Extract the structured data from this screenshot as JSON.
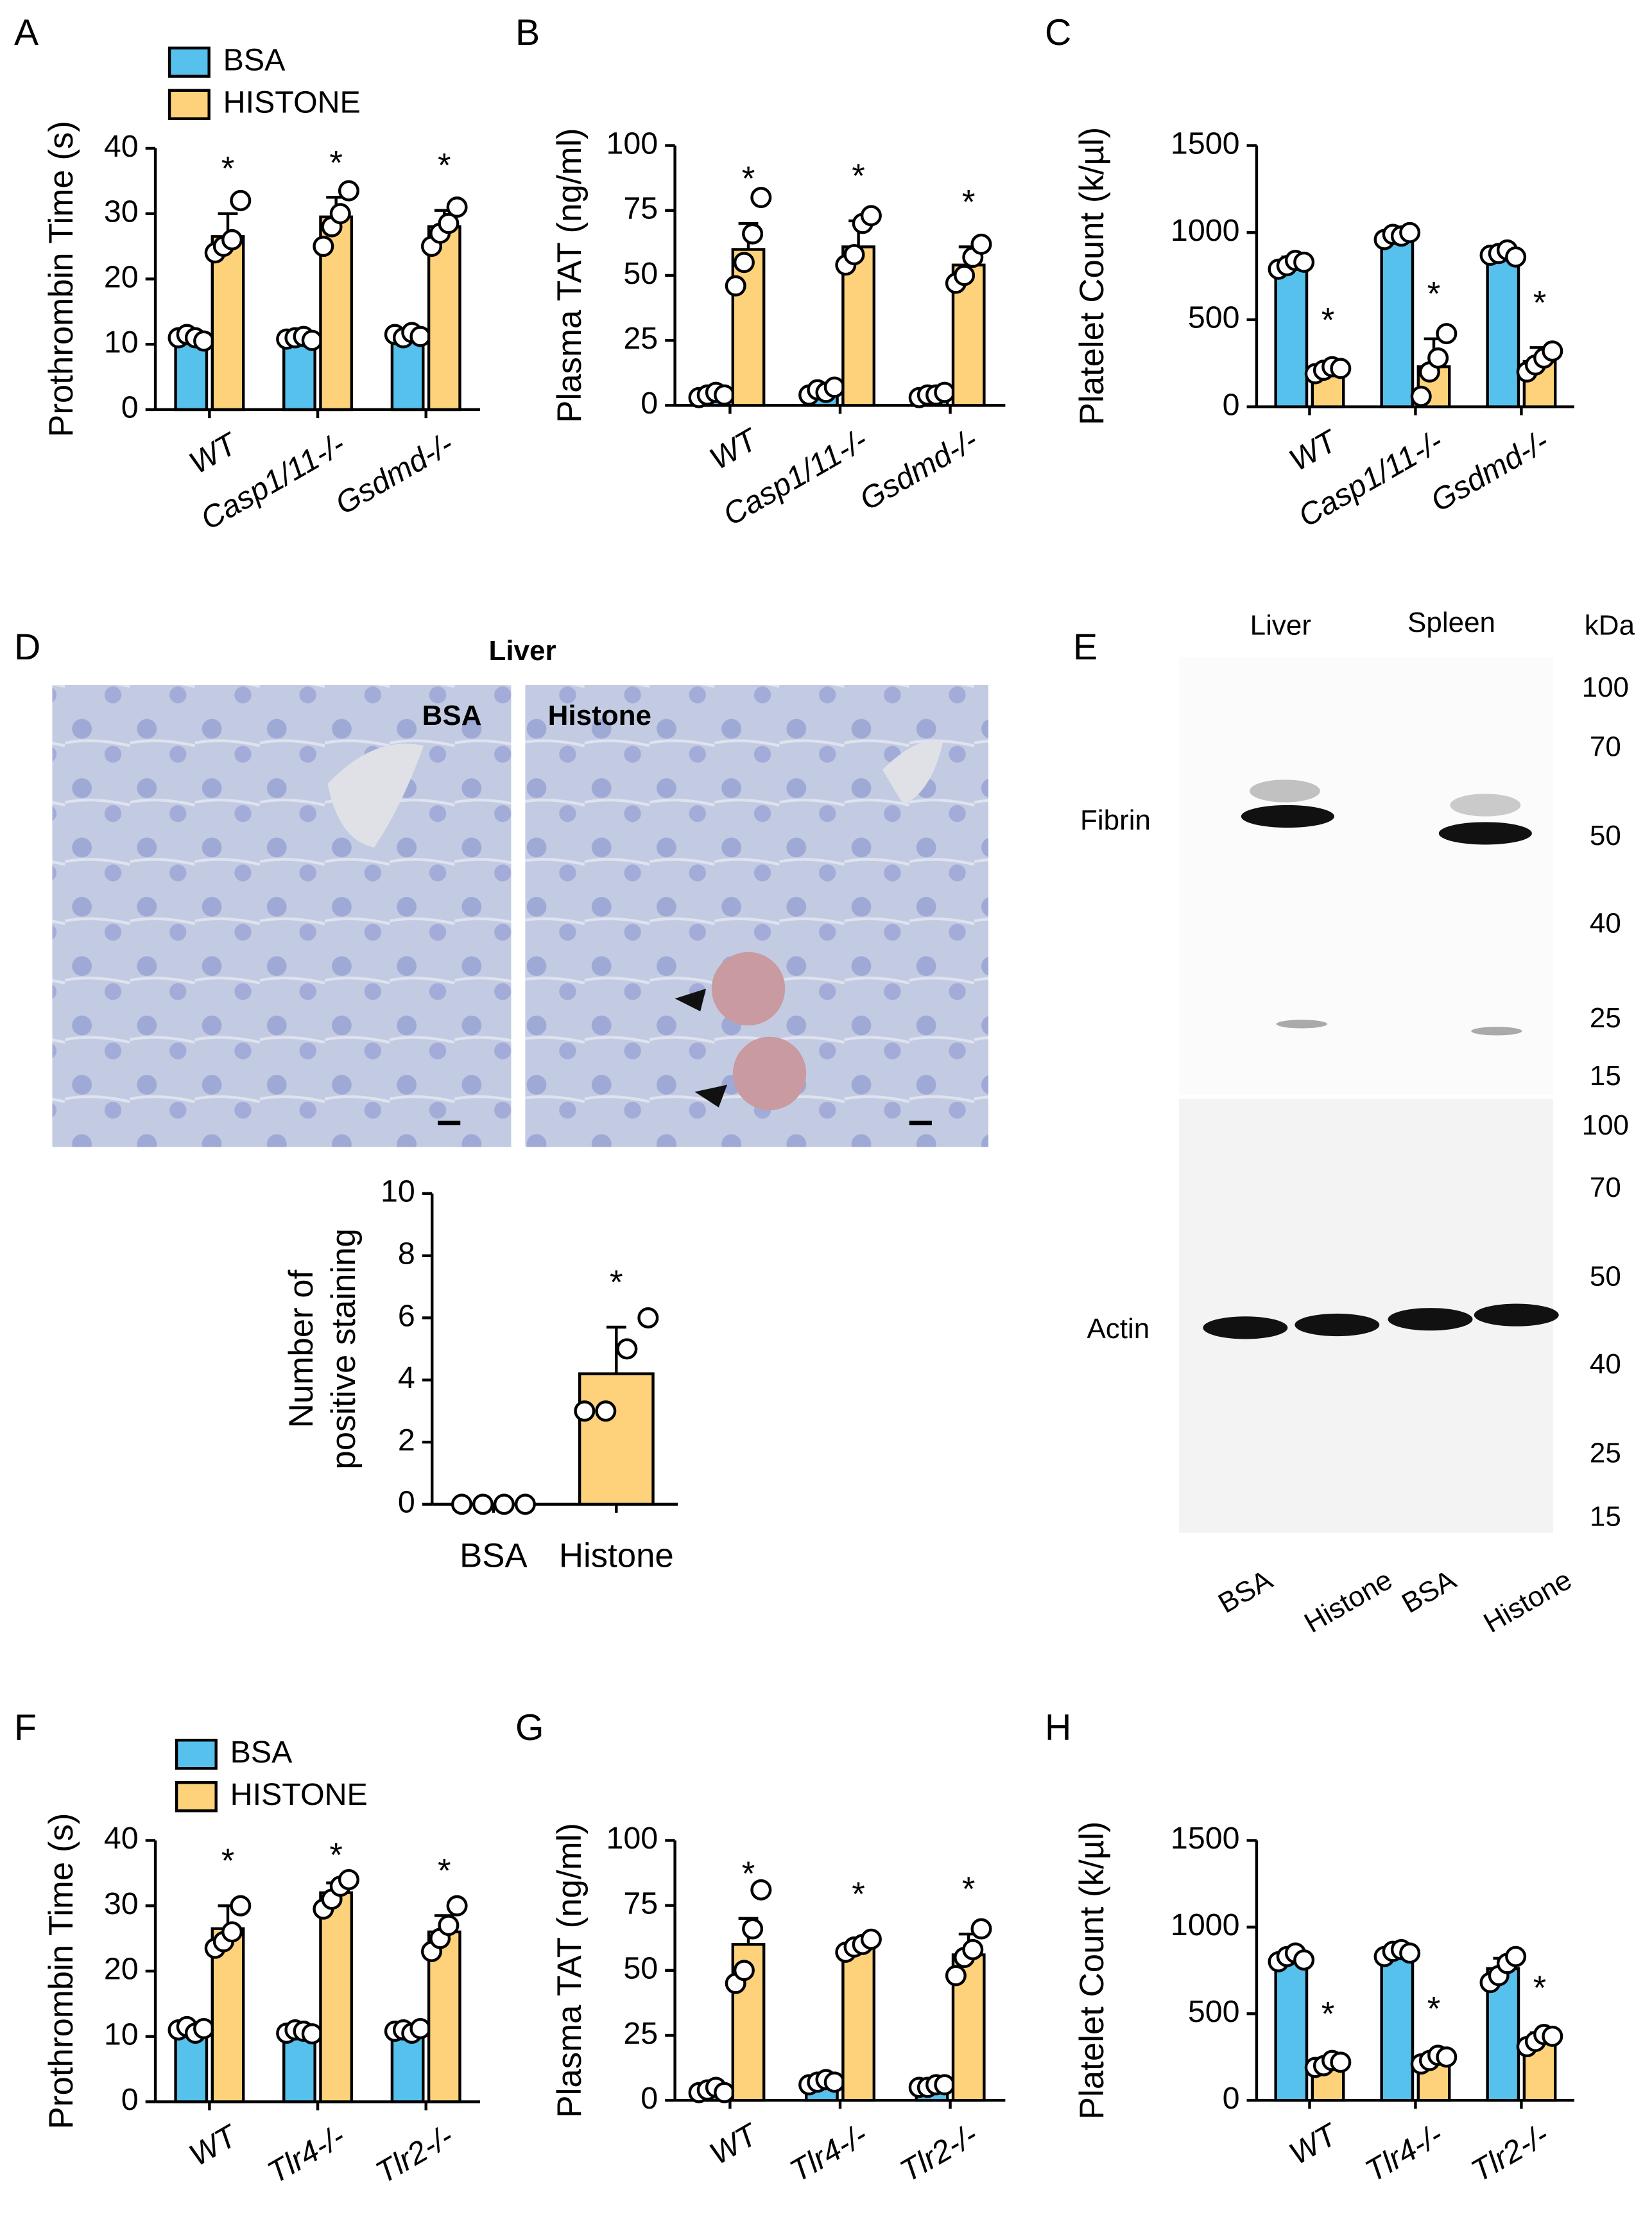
{
  "chart_data": [
    {
      "type": "bar",
      "label": "A",
      "ylabel": "Prothrombin Time (s)",
      "categories": [
        "WT",
        "Casp1/11-/-",
        "Gsdmd-/-"
      ],
      "series": [
        {
          "name": "BSA",
          "color": "#56c1ec",
          "values": [
            11,
            10.8,
            11.3
          ],
          "errors": [
            0.5,
            0.3,
            0.4
          ],
          "points": [
            [
              11,
              11.5,
              11,
              10.5
            ],
            [
              10.8,
              11,
              11.2,
              10.6
            ],
            [
              11.5,
              11,
              11.8,
              11.2
            ]
          ]
        },
        {
          "name": "HISTONE",
          "color": "#fdd27b",
          "values": [
            26.5,
            29.5,
            28
          ],
          "errors": [
            3.5,
            3,
            2.5
          ],
          "points": [
            [
              24,
              25,
              26,
              32
            ],
            [
              25,
              28,
              30,
              33.5
            ],
            [
              25,
              27,
              28.5,
              31
            ]
          ]
        }
      ],
      "ylim": [
        0,
        40
      ],
      "yticks": [
        0,
        10,
        20,
        30,
        40
      ],
      "annotations": [
        "*",
        "*",
        "*"
      ]
    },
    {
      "type": "bar",
      "label": "B",
      "ylabel": "Plasma TAT (ng/ml)",
      "categories": [
        "WT",
        "Casp1/11-/-",
        "Gsdmd-/-"
      ],
      "series": [
        {
          "color": "#56c1ec",
          "values": [
            4,
            5.5,
            4
          ],
          "errors": [
            1,
            1.5,
            1
          ],
          "points": [
            [
              3,
              4,
              5,
              4
            ],
            [
              4,
              6,
              5,
              7
            ],
            [
              3,
              4,
              4,
              5
            ]
          ]
        },
        {
          "color": "#fdd27b",
          "values": [
            60,
            61,
            54
          ],
          "errors": [
            10,
            10,
            7
          ],
          "points": [
            [
              46,
              55,
              66,
              80
            ],
            [
              54,
              58,
              70,
              73
            ],
            [
              47,
              50,
              57,
              62
            ]
          ]
        }
      ],
      "ylim": [
        0,
        100
      ],
      "yticks": [
        0,
        25,
        50,
        75,
        100
      ],
      "annotations": [
        "*",
        "*",
        "*"
      ]
    },
    {
      "type": "bar",
      "label": "C",
      "ylabel": "Platelet Count (k/µl)",
      "categories": [
        "WT",
        "Casp1/11-/-",
        "Gsdmd-/-"
      ],
      "series": [
        {
          "color": "#56c1ec",
          "values": [
            820,
            980,
            880
          ],
          "errors": [
            40,
            20,
            20
          ],
          "points": [
            [
              790,
              810,
              840,
              830
            ],
            [
              960,
              990,
              980,
              1000
            ],
            [
              870,
              880,
              900,
              860
            ]
          ]
        },
        {
          "color": "#fdd27b",
          "values": [
            210,
            230,
            260
          ],
          "errors": [
            30,
            160,
            80
          ],
          "points": [
            [
              190,
              210,
              230,
              220
            ],
            [
              60,
              200,
              280,
              420
            ],
            [
              200,
              240,
              280,
              320
            ]
          ]
        }
      ],
      "ylim": [
        0,
        1500
      ],
      "yticks": [
        0,
        500,
        1000,
        1500
      ],
      "annotations": [
        "*",
        "*",
        "*"
      ]
    },
    {
      "type": "bar",
      "ylabel": [
        "Number of",
        "positive staining"
      ],
      "categories": [
        "BSA",
        "Histone"
      ],
      "series": [
        {
          "color": "#fdd27b",
          "values": [
            0,
            4.2
          ],
          "errors": [
            0,
            1.5
          ],
          "points": [
            [
              0,
              0,
              0,
              0
            ],
            [
              3,
              3,
              5,
              6
            ]
          ]
        }
      ],
      "ylim": [
        0,
        10
      ],
      "yticks": [
        0,
        2,
        4,
        6,
        8,
        10
      ],
      "annotations": [
        null,
        "*"
      ]
    },
    {
      "type": "bar",
      "label": "F",
      "ylabel": "Prothrombin Time (s)",
      "categories": [
        "WT",
        "Tlr4-/-",
        "Tlr2-/-"
      ],
      "series": [
        {
          "name": "BSA",
          "color": "#56c1ec",
          "values": [
            11,
            10.7,
            10.9
          ],
          "errors": [
            0.5,
            0.3,
            0.4
          ],
          "points": [
            [
              11,
              11.5,
              10.5,
              11.2
            ],
            [
              10.5,
              11,
              10.8,
              10.4
            ],
            [
              10.8,
              11,
              10.5,
              11.2
            ]
          ]
        },
        {
          "name": "HISTONE",
          "color": "#fdd27b",
          "values": [
            26.5,
            32,
            26
          ],
          "errors": [
            3.5,
            1.5,
            2.5
          ],
          "points": [
            [
              23.5,
              24.5,
              26,
              30
            ],
            [
              29.5,
              31,
              33,
              34
            ],
            [
              23,
              25,
              27,
              30
            ]
          ]
        }
      ],
      "ylim": [
        0,
        40
      ],
      "yticks": [
        0,
        10,
        20,
        30,
        40
      ],
      "annotations": [
        "*",
        "*",
        "*"
      ]
    },
    {
      "type": "bar",
      "label": "G",
      "ylabel": "Plasma TAT (ng/ml)",
      "categories": [
        "WT",
        "Tlr4-/-",
        "Tlr2-/-"
      ],
      "series": [
        {
          "color": "#56c1ec",
          "values": [
            4,
            7,
            5.5
          ],
          "errors": [
            1,
            1,
            1
          ],
          "points": [
            [
              3,
              4,
              5,
              3
            ],
            [
              6,
              7,
              8,
              7
            ],
            [
              5,
              5,
              6,
              6
            ]
          ]
        },
        {
          "color": "#fdd27b",
          "values": [
            60,
            59,
            56
          ],
          "errors": [
            10,
            3,
            8
          ],
          "points": [
            [
              45,
              50,
              66,
              81
            ],
            [
              57,
              59,
              60,
              62
            ],
            [
              48,
              55,
              58,
              66
            ]
          ]
        }
      ],
      "ylim": [
        0,
        100
      ],
      "yticks": [
        0,
        25,
        50,
        75,
        100
      ],
      "annotations": [
        "*",
        "*",
        "*"
      ]
    },
    {
      "type": "bar",
      "label": "H",
      "ylabel": "Platelet Count (k/µl)",
      "categories": [
        "WT",
        "Tlr4-/-",
        "Tlr2-/-"
      ],
      "series": [
        {
          "color": "#56c1ec",
          "values": [
            820,
            850,
            760
          ],
          "errors": [
            30,
            20,
            60
          ],
          "points": [
            [
              800,
              830,
              850,
              810
            ],
            [
              830,
              860,
              870,
              850
            ],
            [
              680,
              720,
              790,
              830
            ]
          ]
        },
        {
          "color": "#fdd27b",
          "values": [
            210,
            240,
            350
          ],
          "errors": [
            30,
            30,
            40
          ],
          "points": [
            [
              190,
              200,
              230,
              220
            ],
            [
              210,
              230,
              260,
              250
            ],
            [
              310,
              340,
              380,
              370
            ]
          ]
        }
      ],
      "ylim": [
        0,
        1500
      ],
      "yticks": [
        0,
        500,
        1000,
        1500
      ],
      "annotations": [
        "*",
        "*",
        "*"
      ]
    }
  ],
  "figure": {
    "histology": {
      "label": "D",
      "title": "Liver",
      "panels": [
        "BSA",
        "Histone"
      ]
    },
    "blot": {
      "label": "E",
      "tissues": [
        "Liver",
        "Spleen"
      ],
      "unit": "kDa",
      "markers_top": [
        100,
        70,
        50,
        40,
        25,
        15
      ],
      "markers_bottom": [
        100,
        70,
        50,
        40,
        25,
        15
      ],
      "proteins": [
        "Fibrin",
        "Actin"
      ],
      "lanes": [
        "BSA",
        "Histone",
        "BSA",
        "Histone"
      ]
    }
  }
}
